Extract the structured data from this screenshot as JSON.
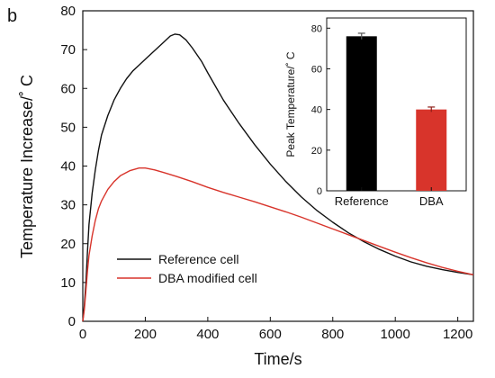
{
  "panel_label": "b",
  "chart_data": [
    {
      "type": "line",
      "xlabel": "Time/s",
      "ylabel": "Temperature Increase/˚ C",
      "xlim": [
        0,
        1250
      ],
      "ylim": [
        0,
        80
      ],
      "xticks": [
        0,
        200,
        400,
        600,
        800,
        1000,
        1200
      ],
      "yticks": [
        0,
        10,
        20,
        30,
        40,
        50,
        60,
        70,
        80
      ],
      "grid": false,
      "legend_position": "lower-left",
      "series": [
        {
          "name": "Reference cell",
          "color": "#111111",
          "points": [
            [
              0,
              0
            ],
            [
              5,
              4
            ],
            [
              10,
              10
            ],
            [
              15,
              18
            ],
            [
              20,
              25
            ],
            [
              30,
              33
            ],
            [
              40,
              39
            ],
            [
              50,
              44
            ],
            [
              60,
              48
            ],
            [
              80,
              53
            ],
            [
              100,
              57
            ],
            [
              120,
              60
            ],
            [
              140,
              62.5
            ],
            [
              160,
              64.5
            ],
            [
              180,
              66
            ],
            [
              200,
              67.5
            ],
            [
              220,
              69
            ],
            [
              240,
              70.5
            ],
            [
              260,
              72
            ],
            [
              280,
              73.5
            ],
            [
              295,
              74
            ],
            [
              310,
              73.8
            ],
            [
              330,
              72.5
            ],
            [
              350,
              70.5
            ],
            [
              380,
              67
            ],
            [
              400,
              64
            ],
            [
              450,
              57
            ],
            [
              500,
              51
            ],
            [
              550,
              45.5
            ],
            [
              600,
              40.5
            ],
            [
              650,
              36
            ],
            [
              700,
              32
            ],
            [
              750,
              28.5
            ],
            [
              800,
              25.5
            ],
            [
              850,
              22.8
            ],
            [
              900,
              20.5
            ],
            [
              950,
              18.5
            ],
            [
              1000,
              16.8
            ],
            [
              1050,
              15.3
            ],
            [
              1100,
              14.2
            ],
            [
              1150,
              13.3
            ],
            [
              1200,
              12.6
            ],
            [
              1250,
              12
            ]
          ]
        },
        {
          "name": "DBA modified cell",
          "color": "#d8342b",
          "points": [
            [
              0,
              0
            ],
            [
              5,
              3
            ],
            [
              10,
              8
            ],
            [
              15,
              13
            ],
            [
              20,
              17
            ],
            [
              30,
              22
            ],
            [
              40,
              26
            ],
            [
              50,
              29
            ],
            [
              60,
              31
            ],
            [
              80,
              34
            ],
            [
              100,
              36
            ],
            [
              120,
              37.5
            ],
            [
              150,
              38.8
            ],
            [
              180,
              39.5
            ],
            [
              200,
              39.5
            ],
            [
              230,
              39
            ],
            [
              260,
              38.3
            ],
            [
              300,
              37.3
            ],
            [
              350,
              36
            ],
            [
              400,
              34.5
            ],
            [
              450,
              33.2
            ],
            [
              500,
              32
            ],
            [
              550,
              30.8
            ],
            [
              600,
              29.5
            ],
            [
              650,
              28.2
            ],
            [
              700,
              26.8
            ],
            [
              750,
              25.3
            ],
            [
              800,
              23.8
            ],
            [
              850,
              22.3
            ],
            [
              900,
              20.8
            ],
            [
              950,
              19.3
            ],
            [
              1000,
              17.8
            ],
            [
              1050,
              16.4
            ],
            [
              1100,
              15.1
            ],
            [
              1150,
              13.9
            ],
            [
              1200,
              12.9
            ],
            [
              1250,
              12
            ]
          ]
        }
      ]
    },
    {
      "type": "bar",
      "categories": [
        "Reference",
        "DBA"
      ],
      "values": [
        76,
        40
      ],
      "errors": [
        1.5,
        1.2
      ],
      "colors": [
        "#000000",
        "#d8342b"
      ],
      "ylabel": "Peak Temperature/˚ C",
      "ylim": [
        0,
        85
      ],
      "yticks": [
        0,
        20,
        40,
        60,
        80
      ],
      "grid": false
    }
  ]
}
